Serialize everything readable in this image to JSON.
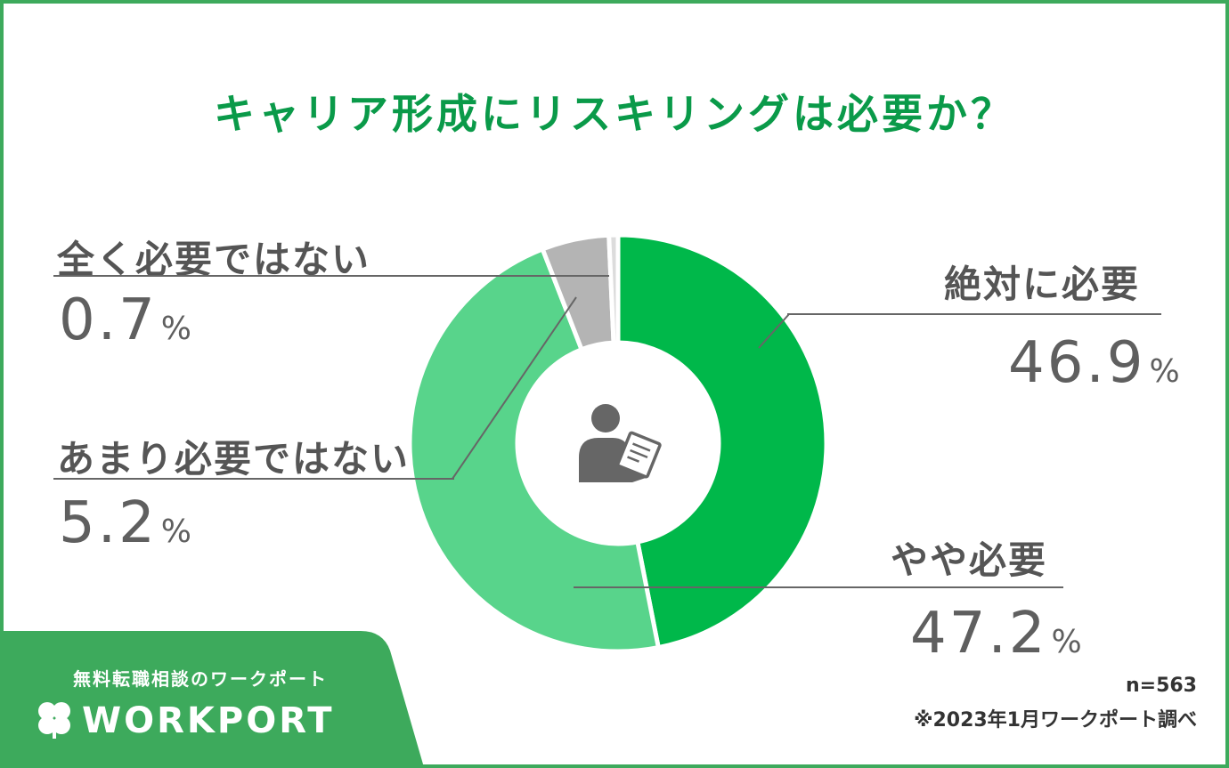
{
  "title": "キャリア形成にリスキリングは必要か？",
  "chart_data": {
    "type": "pie",
    "title": "キャリア形成にリスキリングは必要か？",
    "slices": [
      {
        "label": "絶対に必要",
        "value": 46.9,
        "display": "46.9",
        "color": "#00b84a"
      },
      {
        "label": "やや必要",
        "value": 47.2,
        "display": "47.2",
        "color": "#58d48b"
      },
      {
        "label": "あまり必要ではない",
        "value": 5.2,
        "display": "5.2",
        "color": "#b4b4b4"
      },
      {
        "label": "全く必要ではない",
        "value": 0.7,
        "display": "0.7",
        "color": "#dcdcdc"
      }
    ],
    "unit": "%",
    "donut": true,
    "center_icon": "person-with-document-icon"
  },
  "labels": {
    "absolutely": {
      "name": "絶対に必要",
      "value": "46.9"
    },
    "somewhat": {
      "name": "やや必要",
      "value": "47.2"
    },
    "not_really": {
      "name": "あまり必要ではない",
      "value": "5.2"
    },
    "not_at_all": {
      "name": "全く必要ではない",
      "value": "0.7"
    },
    "percent_sign": "%"
  },
  "footer": {
    "sample": "n=563",
    "source": "※2023年1月ワークポート調べ"
  },
  "brand": {
    "tagline": "無料転職相談のワークポート",
    "logo": "WORKPORT",
    "logo_icon": "clover-icon",
    "panel_color": "#3daa5c"
  },
  "colors": {
    "title": "#0a9a49",
    "border": "#3daa5c",
    "text": "#5f5f5f"
  }
}
